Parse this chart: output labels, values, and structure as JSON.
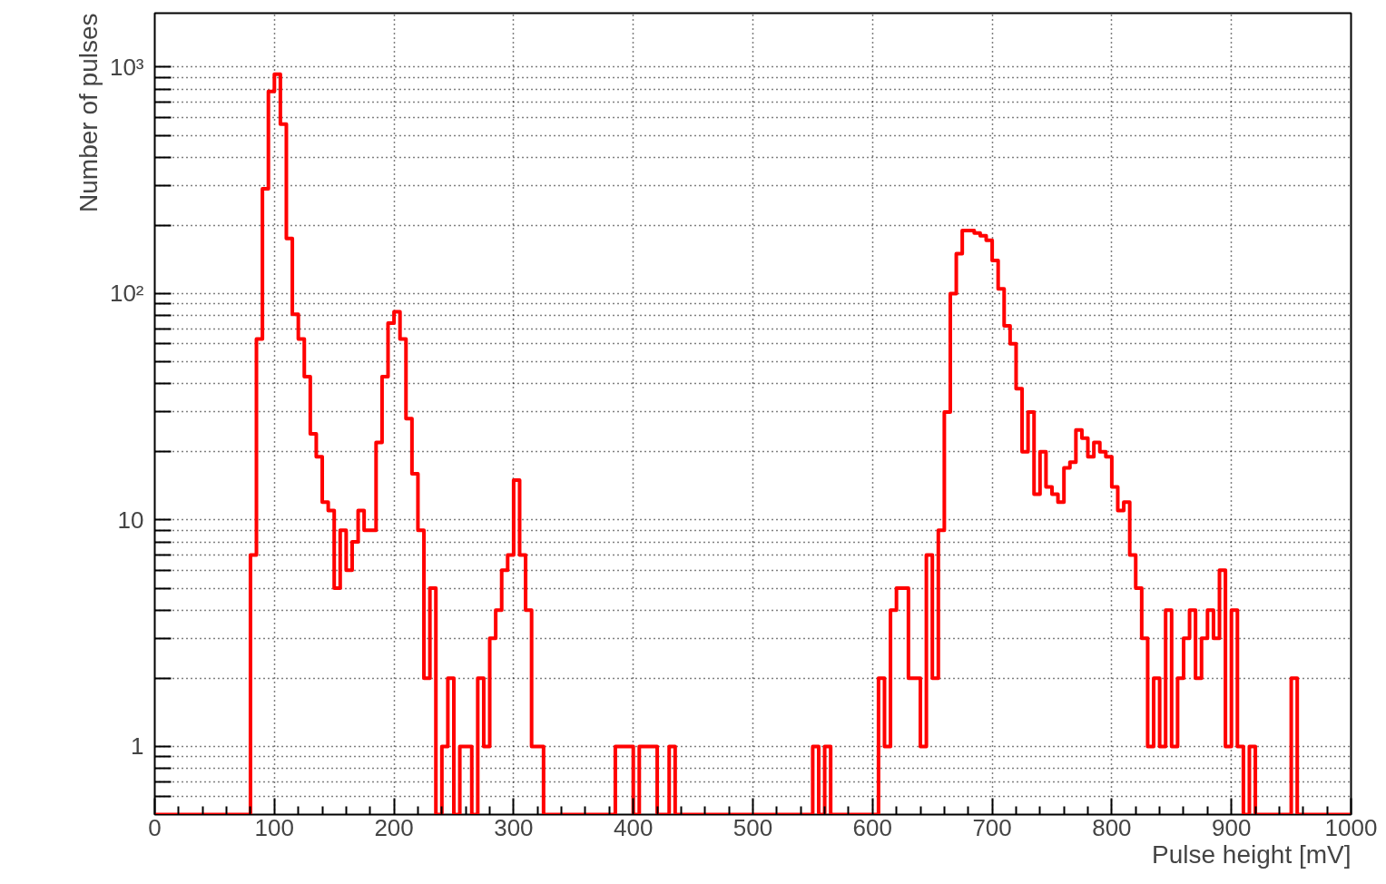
{
  "chart_data": {
    "type": "histogram",
    "xlabel": "Pulse height [mV]",
    "ylabel": "Number of pulses",
    "bins": [
      0,
      5,
      10,
      15,
      20,
      25,
      30,
      35,
      40,
      45,
      50,
      55,
      60,
      65,
      70,
      75,
      80,
      85,
      90,
      95,
      100,
      105,
      110,
      115,
      120,
      125,
      130,
      135,
      140,
      145,
      150,
      155,
      160,
      165,
      170,
      175,
      180,
      185,
      190,
      195,
      200,
      205,
      210,
      215,
      220,
      225,
      230,
      235,
      240,
      245,
      250,
      255,
      260,
      265,
      270,
      275,
      280,
      285,
      290,
      295,
      300,
      305,
      310,
      315,
      320,
      325,
      330,
      335,
      340,
      345,
      350,
      355,
      360,
      365,
      370,
      375,
      380,
      385,
      390,
      395,
      400,
      405,
      410,
      415,
      420,
      425,
      430,
      435,
      440,
      445,
      450,
      455,
      460,
      465,
      470,
      475,
      480,
      485,
      490,
      495,
      500,
      505,
      510,
      515,
      520,
      525,
      530,
      535,
      540,
      545,
      550,
      555,
      560,
      565,
      570,
      575,
      580,
      585,
      590,
      595,
      600,
      605,
      610,
      615,
      620,
      625,
      630,
      635,
      640,
      645,
      650,
      655,
      660,
      665,
      670,
      675,
      680,
      685,
      690,
      695,
      700,
      705,
      710,
      715,
      720,
      725,
      730,
      735,
      740,
      745,
      750,
      755,
      760,
      765,
      770,
      775,
      780,
      785,
      790,
      795,
      800,
      805,
      810,
      815,
      820,
      825,
      830,
      835,
      840,
      845,
      850,
      855,
      860,
      865,
      870,
      875,
      880,
      885,
      890,
      895,
      900,
      905,
      910,
      915,
      920,
      925,
      930,
      935,
      940,
      945,
      950,
      955,
      960,
      965,
      970,
      975,
      980,
      985,
      990,
      995,
      1000
    ],
    "values": [
      null,
      null,
      null,
      null,
      null,
      null,
      null,
      null,
      null,
      null,
      null,
      null,
      null,
      null,
      null,
      null,
      7,
      63,
      290,
      780,
      930,
      560,
      175,
      81,
      63,
      43,
      24,
      19,
      12,
      11,
      5,
      9,
      6,
      8,
      11,
      9,
      9,
      22,
      43,
      74,
      83,
      63,
      28,
      16,
      9,
      2,
      5,
      null,
      1,
      2,
      null,
      1,
      1,
      null,
      2,
      1,
      3,
      4,
      6,
      7,
      15,
      7,
      4,
      1,
      1,
      null,
      null,
      null,
      null,
      null,
      null,
      null,
      null,
      null,
      null,
      null,
      null,
      1,
      1,
      1,
      null,
      1,
      1,
      1,
      null,
      null,
      1,
      null,
      null,
      null,
      null,
      null,
      null,
      null,
      null,
      null,
      null,
      null,
      null,
      null,
      null,
      null,
      null,
      null,
      null,
      null,
      null,
      null,
      null,
      null,
      1,
      null,
      1,
      null,
      null,
      null,
      null,
      null,
      null,
      null,
      null,
      2,
      1,
      4,
      5,
      5,
      2,
      2,
      1,
      7,
      2,
      9,
      30,
      100,
      150,
      190,
      190,
      185,
      180,
      172,
      140,
      105,
      72,
      60,
      38,
      20,
      30,
      13,
      20,
      14,
      13,
      12,
      17,
      18,
      25,
      23,
      19,
      22,
      20,
      19,
      14,
      11,
      12,
      7,
      5,
      3,
      1,
      2,
      1,
      4,
      1,
      2,
      3,
      4,
      2,
      3,
      4,
      3,
      6,
      1,
      4,
      1,
      null,
      1,
      null,
      null,
      null,
      null,
      null,
      null,
      2,
      null,
      null,
      null,
      null,
      null,
      null,
      null,
      null,
      null
    ],
    "color": "#ff0000",
    "log": "y",
    "xlim": [
      0,
      1000
    ],
    "ylim": [
      0.5,
      1731
    ],
    "xticks": [
      0,
      100,
      200,
      300,
      400,
      500,
      600,
      700,
      800,
      900,
      1000
    ],
    "yticks": [
      {
        "value": 0.6,
        "label": null
      },
      {
        "value": 0.7,
        "label": null
      },
      {
        "value": 0.8,
        "label": null
      },
      {
        "value": 0.9,
        "label": null
      },
      1,
      {
        "value": 2,
        "label": null
      },
      {
        "value": 3,
        "label": null
      },
      {
        "value": 4,
        "label": null
      },
      {
        "value": 5,
        "label": null
      },
      {
        "value": 6,
        "label": null
      },
      {
        "value": 7,
        "label": null
      },
      {
        "value": 8,
        "label": null
      },
      {
        "value": 9,
        "label": null
      },
      10,
      {
        "value": 20,
        "label": null
      },
      {
        "value": 30,
        "label": null
      },
      {
        "value": 40,
        "label": null
      },
      {
        "value": 50,
        "label": null
      },
      {
        "value": 60,
        "label": null
      },
      {
        "value": 70,
        "label": null
      },
      {
        "value": 80,
        "label": null
      },
      {
        "value": 90,
        "label": null
      },
      {
        "value": 100,
        "label": "10²"
      },
      {
        "value": 200,
        "label": null
      },
      {
        "value": 300,
        "label": null
      },
      {
        "value": 400,
        "label": null
      },
      {
        "value": 500,
        "label": null
      },
      {
        "value": 600,
        "label": null
      },
      {
        "value": 700,
        "label": null
      },
      {
        "value": 800,
        "label": null
      },
      {
        "value": 900,
        "label": null
      },
      {
        "value": 1000,
        "label": "10³"
      }
    ],
    "grid": true
  }
}
